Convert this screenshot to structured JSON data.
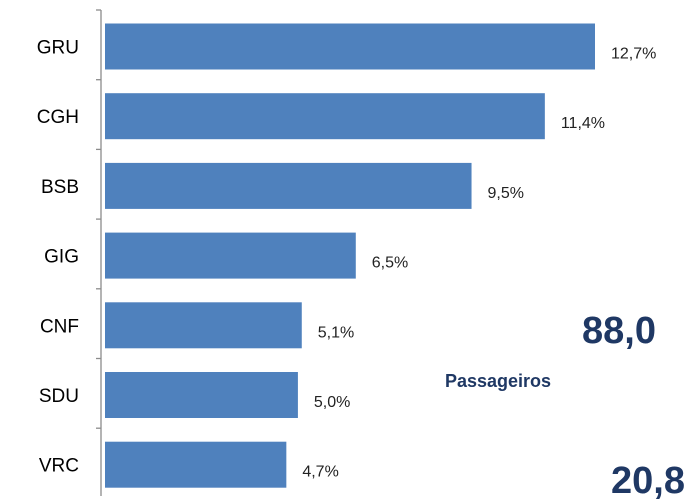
{
  "chart_data": {
    "type": "bar",
    "orientation": "horizontal",
    "categories": [
      "GRU",
      "CGH",
      "BSB",
      "GIG",
      "CNF",
      "SDU",
      "VRC"
    ],
    "values": [
      12.7,
      11.4,
      9.5,
      6.5,
      5.1,
      5.0,
      4.7
    ],
    "value_labels": [
      "12,7%",
      "11,4%",
      "9,5%",
      "6,5%",
      "5,1%",
      "5,0%",
      "4,7%"
    ],
    "title": "",
    "xlabel": "",
    "ylabel": "",
    "xlim": [
      0,
      12.7
    ],
    "grid": false,
    "bar_color": "#4F81BD"
  },
  "side_stats": {
    "big_number_1": "88,0",
    "caption_1": "Passageiros",
    "big_number_2": "20,8"
  }
}
